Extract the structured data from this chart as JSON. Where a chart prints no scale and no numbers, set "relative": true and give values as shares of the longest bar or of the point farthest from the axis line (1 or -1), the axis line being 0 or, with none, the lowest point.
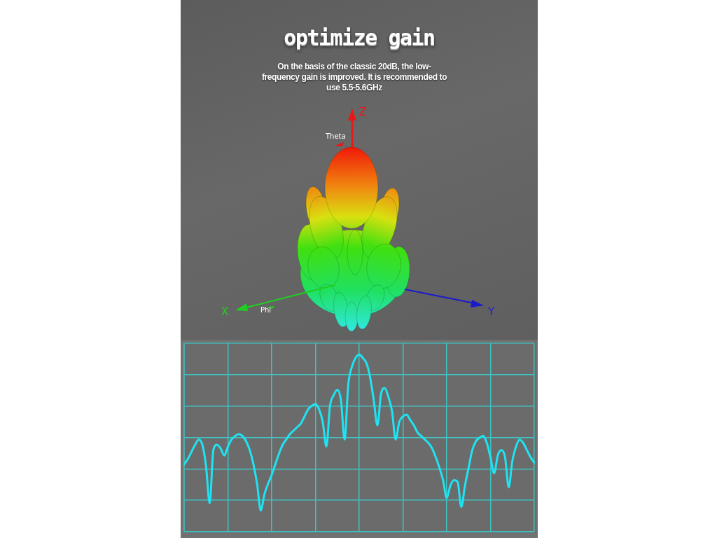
{
  "chart_data": {
    "type": "line",
    "title": "optimize gain",
    "subtitle": "On the basis of the classic 20dB, the low-frequency gain is improved. It is recommended to use 5.5-5.6GHz",
    "annotations": [
      "Z",
      "Theta",
      "X",
      "Phi",
      "Y"
    ],
    "categories": [
      null,
      null,
      null,
      null,
      null,
      null,
      null,
      null,
      null,
      null,
      null,
      null,
      null,
      null,
      null,
      null,
      null,
      null,
      null,
      null,
      null,
      null,
      null,
      null,
      null,
      null,
      null,
      null,
      null,
      null,
      null,
      null,
      null,
      null,
      null,
      null,
      null,
      null,
      null,
      null,
      null,
      null,
      null,
      null,
      null,
      null,
      null,
      null,
      null,
      null,
      null,
      null,
      null,
      null,
      null,
      null,
      null,
      null,
      null,
      null,
      null,
      null,
      null,
      null,
      null,
      null,
      null,
      null,
      null,
      null,
      null,
      null,
      null,
      null,
      null,
      null,
      null,
      null,
      null,
      null,
      null,
      null,
      null,
      null,
      null,
      null,
      null,
      null,
      null,
      null,
      null,
      null,
      null,
      null,
      null,
      null,
      null
    ],
    "values": [
      0.38,
      0.41,
      0.45,
      0.49,
      0.52,
      0.49,
      0.37,
      0.16,
      0.46,
      0.49,
      0.47,
      0.43,
      0.48,
      0.52,
      0.54,
      0.55,
      0.54,
      0.51,
      0.46,
      0.38,
      0.27,
      0.12,
      0.21,
      0.27,
      0.32,
      0.38,
      0.44,
      0.49,
      0.52,
      0.55,
      0.57,
      0.59,
      0.61,
      0.65,
      0.69,
      0.71,
      0.72,
      0.69,
      0.62,
      0.48,
      0.71,
      0.77,
      0.8,
      0.74,
      0.52,
      0.83,
      0.93,
      0.98,
      1.0,
      0.98,
      0.95,
      0.87,
      0.74,
      0.6,
      0.78,
      0.81,
      0.76,
      0.68,
      0.52,
      0.62,
      0.65,
      0.66,
      0.63,
      0.6,
      0.56,
      0.54,
      0.52,
      0.5,
      0.47,
      0.42,
      0.36,
      0.29,
      0.19,
      0.26,
      0.29,
      0.28,
      0.14,
      0.26,
      0.36,
      0.46,
      0.51,
      0.53,
      0.54,
      0.5,
      0.42,
      0.33,
      0.43,
      0.46,
      0.42,
      0.25,
      0.4,
      0.48,
      0.52,
      0.5,
      0.46,
      0.42,
      0.39
    ],
    "color": "#1fe3f2",
    "relative": true,
    "grid": true,
    "marker": "none",
    "line_style": "solid"
  }
}
